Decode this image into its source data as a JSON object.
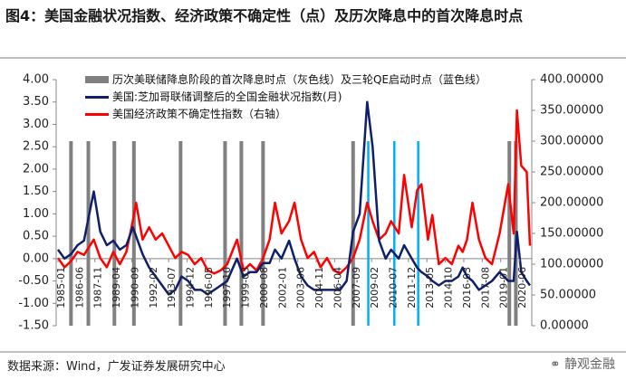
{
  "chart_data": {
    "type": "line",
    "title": "图4：美国金融状况指数、经济政策不确定性（点）及历次降息中的首次降息时点",
    "source": "数据来源：Wind，广发证券发展研究中心",
    "watermark": "静观金融",
    "x": [
      "1985-01",
      "1985-07",
      "1986-01",
      "1986-07",
      "1987-01",
      "1987-10",
      "1988-04",
      "1988-10",
      "1989-04",
      "1989-10",
      "1990-04",
      "1990-10",
      "1991-01",
      "1991-07",
      "1992-01",
      "1992-07",
      "1993-01",
      "1993-07",
      "1994-01",
      "1994-07",
      "1995-01",
      "1995-07",
      "1996-01",
      "1996-07",
      "1997-01",
      "1997-07",
      "1998-01",
      "1998-10",
      "1999-04",
      "1999-10",
      "2000-04",
      "2000-10",
      "2001-04",
      "2001-09",
      "2002-03",
      "2002-10",
      "2003-03",
      "2003-09",
      "2004-03",
      "2004-09",
      "2005-03",
      "2005-09",
      "2006-03",
      "2006-09",
      "2007-03",
      "2007-09",
      "2008-03",
      "2008-10",
      "2009-03",
      "2009-09",
      "2010-03",
      "2010-08",
      "2011-03",
      "2011-08",
      "2012-03",
      "2012-08",
      "2012-12",
      "2013-06",
      "2013-10",
      "2014-04",
      "2014-10",
      "2015-04",
      "2015-10",
      "2016-02",
      "2016-06",
      "2016-11",
      "2017-05",
      "2017-11",
      "2018-05",
      "2018-12",
      "2019-08",
      "2020-01",
      "2020-04",
      "2020-08",
      "2021-01",
      "2021-04"
    ],
    "xlim": [
      "1985-01",
      "2021-04"
    ],
    "xticks": [
      "1985-01",
      "1986-06",
      "1987-11",
      "1989-04",
      "1990-09",
      "1992-02",
      "1993-07",
      "1994-12",
      "1996-05",
      "1997-10",
      "1999-03",
      "2000-08",
      "2002-01",
      "2003-06",
      "2004-11",
      "2006-04",
      "2007-09",
      "2009-02",
      "2010-07",
      "2011-12",
      "2013-05",
      "2014-10",
      "2016-03",
      "2017-08",
      "2019-01",
      "2020-06"
    ],
    "series": [
      {
        "name": "美国:芝加哥联储调整后的全国金融状况指数(月)",
        "color": "#0f1f6b",
        "values": [
          0.2,
          0.0,
          0.1,
          0.3,
          0.4,
          1.5,
          0.6,
          0.3,
          0.4,
          0.2,
          0.3,
          0.7,
          0.5,
          0.1,
          -0.2,
          -0.4,
          -0.6,
          -0.8,
          -0.7,
          -0.4,
          -0.5,
          -0.7,
          -0.7,
          -0.8,
          -0.7,
          -0.6,
          -0.5,
          0.0,
          -0.4,
          -0.3,
          -0.3,
          -0.1,
          -0.1,
          0.2,
          0.0,
          0.4,
          0.0,
          -0.4,
          -0.6,
          -0.7,
          -0.7,
          -0.7,
          -0.7,
          -0.7,
          -0.5,
          0.6,
          1.0,
          3.5,
          2.5,
          0.4,
          0.0,
          0.2,
          0.0,
          0.3,
          0.0,
          -0.2,
          -0.3,
          -0.4,
          -0.5,
          -0.6,
          -0.5,
          -0.5,
          -0.4,
          -0.2,
          -0.4,
          -0.5,
          -0.7,
          -0.6,
          -0.5,
          -0.3,
          -0.5,
          -0.5,
          0.6,
          -0.3,
          -0.5,
          -0.6
        ]
      },
      {
        "name": "美国经济政策不确定性指数（右轴）",
        "color": "#ff0000",
        "axis": "y2",
        "values": [
          110,
          95,
          105,
          120,
          115,
          140,
          110,
          95,
          120,
          100,
          120,
          170,
          200,
          140,
          160,
          140,
          150,
          130,
          110,
          120,
          115,
          100,
          110,
          90,
          85,
          90,
          100,
          140,
          90,
          100,
          90,
          110,
          140,
          200,
          150,
          170,
          200,
          140,
          110,
          120,
          95,
          110,
          90,
          85,
          95,
          110,
          140,
          200,
          170,
          140,
          150,
          170,
          150,
          245,
          160,
          220,
          230,
          140,
          180,
          100,
          110,
          100,
          130,
          120,
          140,
          200,
          140,
          110,
          100,
          150,
          230,
          150,
          350,
          260,
          250,
          130
        ]
      }
    ],
    "reference_lines": {
      "name": "历次美联储降息阶段的首次降息时点（灰色线）及三轮QE启动时点（蓝色线）",
      "gray_color": "#808080",
      "blue_color": "#00b0f0",
      "gray": [
        "1986-01",
        "1987-05",
        "1989-05",
        "1990-11",
        "1994-06",
        "1997-11",
        "1999-02",
        "2000-10",
        "2007-09",
        "2019-09",
        "2020-03"
      ],
      "blue": [
        "2008-11",
        "2010-11",
        "2012-09"
      ]
    },
    "ylim": [
      -1.5,
      4
    ],
    "yticks": [
      {
        "value": -1.5,
        "label": "-1.50"
      },
      {
        "value": -1,
        "label": "-1.00"
      },
      {
        "value": -0.5,
        "label": "-0.50"
      },
      {
        "value": 0,
        "label": "0.00"
      },
      {
        "value": 0.5,
        "label": "0.50"
      },
      {
        "value": 1,
        "label": "1.00"
      },
      {
        "value": 1.5,
        "label": "1.50"
      },
      {
        "value": 2,
        "label": "2.00"
      },
      {
        "value": 2.5,
        "label": "2.50"
      },
      {
        "value": 3,
        "label": "3.00"
      },
      {
        "value": 3.5,
        "label": "3.50"
      },
      {
        "value": 4,
        "label": "4.00"
      }
    ],
    "y2lim": [
      0,
      400
    ],
    "y2ticks": [
      {
        "value": 0,
        "label": "0.00000"
      },
      {
        "value": 50,
        "label": "50.00000"
      },
      {
        "value": 100,
        "label": "100.00000"
      },
      {
        "value": 150,
        "label": "150.00000"
      },
      {
        "value": 200,
        "label": "200.00000"
      },
      {
        "value": 250,
        "label": "250.00000"
      },
      {
        "value": 300,
        "label": "300.00000"
      },
      {
        "value": 350,
        "label": "350.00000"
      },
      {
        "value": 400,
        "label": "400.00000"
      }
    ],
    "grid": false
  }
}
